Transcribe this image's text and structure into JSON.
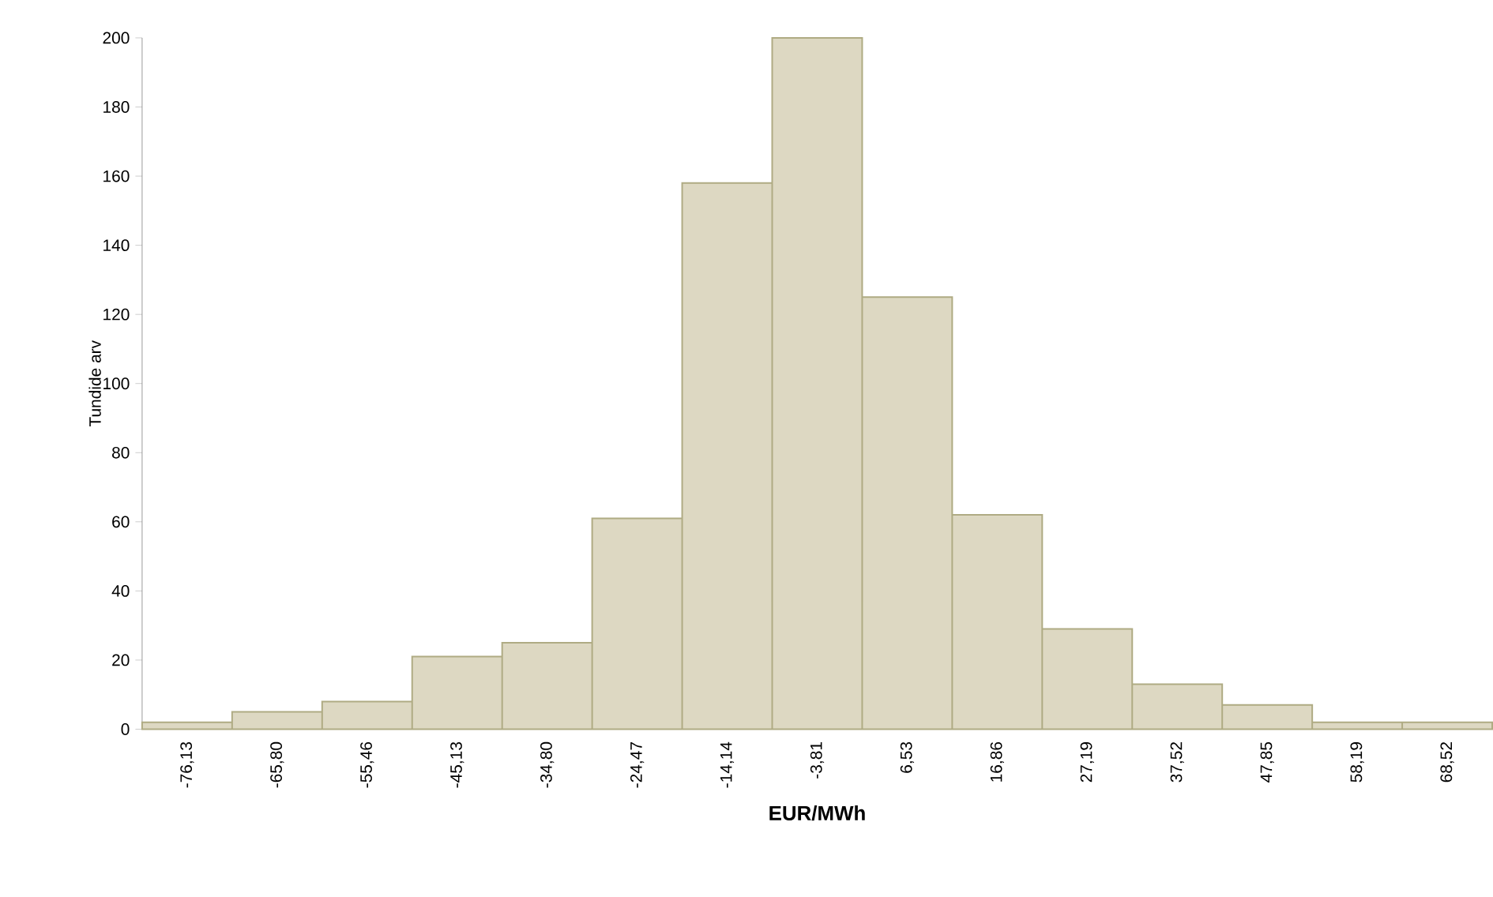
{
  "chart_data": {
    "type": "bar",
    "xlabel": "EUR/MWh",
    "ylabel": "Tundide arv",
    "categories": [
      "-76,13",
      "-65,80",
      "-55,46",
      "-45,13",
      "-34,80",
      "-24,47",
      "-14,14",
      "-3,81",
      "6,53",
      "16,86",
      "27,19",
      "37,52",
      "47,85",
      "58,19",
      "68,52"
    ],
    "values": [
      2,
      5,
      8,
      21,
      25,
      61,
      158,
      200,
      125,
      62,
      29,
      13,
      7,
      2,
      2
    ],
    "color": "#ddd8c2",
    "ylim": [
      0,
      200
    ],
    "yticks": [
      0,
      20,
      40,
      60,
      80,
      100,
      120,
      140,
      160,
      180,
      200
    ]
  }
}
